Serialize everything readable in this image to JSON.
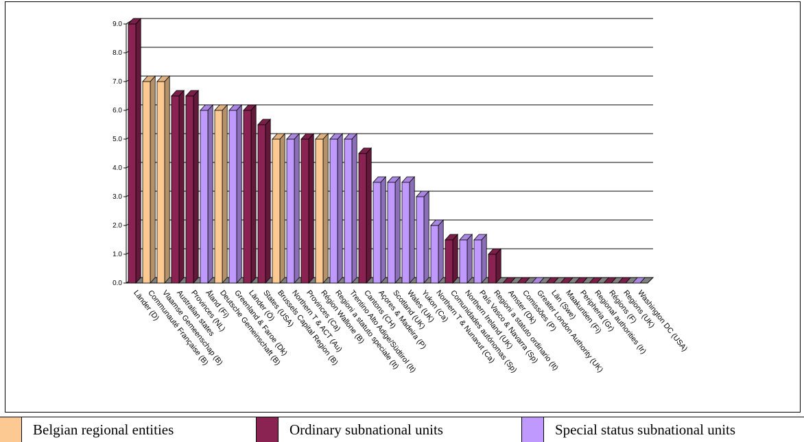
{
  "colors": {
    "belgian": "#fcc992",
    "ordinary": "#8b2352",
    "special": "#c099ff",
    "floor": "#808080",
    "grid": "#000000"
  },
  "legend": [
    {
      "key": "belgian",
      "label": "Belgian regional entities"
    },
    {
      "key": "ordinary",
      "label": "Ordinary subnational units"
    },
    {
      "key": "special",
      "label": "Special status subnational units"
    }
  ],
  "chart_data": {
    "type": "bar",
    "title": "",
    "xlabel": "",
    "ylabel": "",
    "ylim": [
      0,
      9
    ],
    "yticks": [
      "0.0",
      "1.0",
      "2.0",
      "3.0",
      "4.0",
      "5.0",
      "6.0",
      "7.0",
      "8.0",
      "9.0"
    ],
    "grid": true,
    "legend_position": "bottom",
    "categories": [
      "Länder (D)",
      "Communauté Française (B)",
      "Vlaamse Gemeenschap (B)",
      "Australian states",
      "Provinces (NL)",
      "Åland (Fi)",
      "Deutsche Gemeinschaft (B)",
      "Greenland & Faroe (Dk)",
      "Länder (Ö)",
      "States (USA)",
      "Brussels Capital Region (B)",
      "Northern T & ACT (Au)",
      "Provinces (Ca)",
      "Région Wallone (B)",
      "Regioni a statuto speciale (It)",
      "Trentino Alto Adige/Südtirol (It)",
      "Cantons (CH)",
      "Açores & Madeira (P)",
      "Scotland (UK)",
      "Wales (UK)",
      "Yukon (Ca)",
      "Northern T & Nunavut (Ca)",
      "Comunidades autónomas (Sp)",
      "Northern Ireland (UK)",
      "País Vasco & Navarra (Sp)",
      "Regioni a statuto ordinario (It)",
      "Amster (Dk)",
      "Comissões (P)",
      "Greater London Authority (UK)",
      "Län (Swe)",
      "Maakuntien (Fi)",
      "Peripheria (Gr)",
      "Regional authorities (Ir)",
      "Régions (F)",
      "Regions (UK)",
      "Washington DC (USA)"
    ],
    "values": [
      9,
      7,
      7,
      6.5,
      6.5,
      6,
      6,
      6,
      6,
      5.5,
      5,
      5,
      5,
      5,
      5,
      5,
      4.5,
      3.5,
      3.5,
      3.5,
      3,
      2,
      1.5,
      1.5,
      1.5,
      1,
      0,
      0,
      0,
      0,
      0,
      0,
      0,
      0,
      0,
      0
    ],
    "groups": [
      "ordinary",
      "belgian",
      "belgian",
      "ordinary",
      "ordinary",
      "special",
      "belgian",
      "special",
      "ordinary",
      "ordinary",
      "belgian",
      "special",
      "ordinary",
      "belgian",
      "special",
      "special",
      "ordinary",
      "special",
      "special",
      "special",
      "special",
      "special",
      "ordinary",
      "special",
      "special",
      "ordinary",
      "ordinary",
      "ordinary",
      "special",
      "ordinary",
      "ordinary",
      "ordinary",
      "ordinary",
      "ordinary",
      "ordinary",
      "special"
    ]
  }
}
